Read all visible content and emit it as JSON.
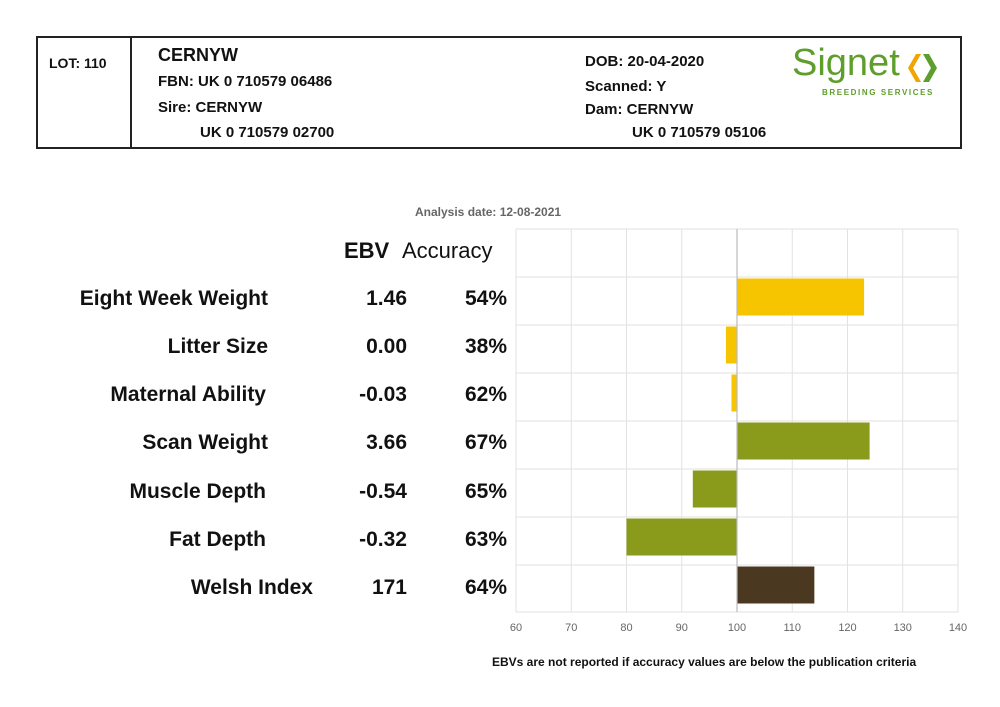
{
  "header": {
    "lot": "LOT: 110",
    "name": "CERNYW",
    "fbn": "FBN: UK 0 710579 06486",
    "sire": "Sire: CERNYW",
    "sire_id": "UK 0 710579 02700",
    "dob": "DOB: 20-04-2020",
    "scanned": "Scanned: Y",
    "dam": "Dam: CERNYW",
    "dam_id": "UK 0 710579 05106",
    "logo_word": "Signet",
    "logo_sub": "BREEDING SERVICES"
  },
  "analysis_date": "Analysis date: 12-08-2021",
  "columns": {
    "ebv": "EBV",
    "accuracy": "Accuracy"
  },
  "rows": [
    {
      "label": "Eight Week Weight",
      "ebv": "1.46",
      "accuracy": "54%"
    },
    {
      "label": "Litter Size",
      "ebv": "0.00",
      "accuracy": "38%"
    },
    {
      "label": "Maternal Ability",
      "ebv": "-0.03",
      "accuracy": "62%"
    },
    {
      "label": "Scan Weight",
      "ebv": "3.66",
      "accuracy": "67%"
    },
    {
      "label": "Muscle Depth",
      "ebv": "-0.54",
      "accuracy": "65%"
    },
    {
      "label": "Fat Depth",
      "ebv": "-0.32",
      "accuracy": "63%"
    },
    {
      "label": "Welsh Index",
      "ebv": "171",
      "accuracy": "64%"
    }
  ],
  "chart_data": {
    "type": "bar",
    "orientation": "horizontal",
    "baseline": 100,
    "categories": [
      "Eight Week Weight",
      "Litter Size",
      "Maternal Ability",
      "Scan Weight",
      "Muscle Depth",
      "Fat Depth",
      "Welsh Index"
    ],
    "values": [
      123,
      98,
      99,
      124,
      92,
      80,
      114
    ],
    "xlim": [
      60,
      140
    ],
    "xticks": [
      "60",
      "70",
      "80",
      "90",
      "100",
      "110",
      "120",
      "130",
      "140"
    ],
    "grid": true,
    "colors": {
      "maternal": "#f6c500",
      "production": "#8a9a1a",
      "index": "#4a3820",
      "grid": "#e2e2e2",
      "axis": "#bbbbbb",
      "logo": "#5e9e2c"
    },
    "bar_colors": [
      "#f6c500",
      "#f6c500",
      "#f6c500",
      "#8a9a1a",
      "#8a9a1a",
      "#8a9a1a",
      "#4a3820"
    ]
  },
  "footer_note": "EBVs are not reported if accuracy values are below the publication criteria"
}
